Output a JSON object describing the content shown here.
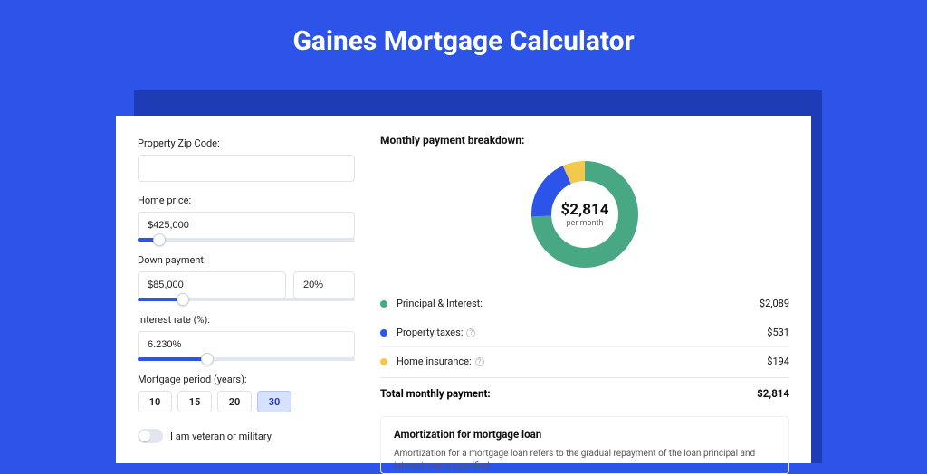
{
  "title": "Gaines Mortgage Calculator",
  "colors": {
    "page_bg": "#2d54e8",
    "panel_shadow": "#1e3cb5",
    "slider_fill": "#2d54e8",
    "period_active_bg": "#d6e0ff"
  },
  "form": {
    "zip": {
      "label": "Property Zip Code:",
      "value": ""
    },
    "price": {
      "label": "Home price:",
      "value": "$425,000",
      "slider_pct": 10
    },
    "down": {
      "label": "Down payment:",
      "amount": "$85,000",
      "pct": "20%",
      "slider_pct": 21
    },
    "rate": {
      "label": "Interest rate (%):",
      "value": "6.230%",
      "slider_pct": 32
    },
    "period": {
      "label": "Mortgage period (years):",
      "options": [
        "10",
        "15",
        "20",
        "30"
      ],
      "selected": "30"
    },
    "veteran_label": "I am veteran or military",
    "veteran_on": false
  },
  "breakdown": {
    "title": "Monthly payment breakdown:",
    "center_amount": "$2,814",
    "center_sub": "per month",
    "donut": {
      "radius": 48,
      "stroke": 22,
      "segments": [
        {
          "key": "pi",
          "color": "#49a884",
          "fraction": 0.742
        },
        {
          "key": "tax",
          "color": "#2d54e8",
          "fraction": 0.189
        },
        {
          "key": "ins",
          "color": "#f2c94c",
          "fraction": 0.069
        }
      ]
    },
    "items": [
      {
        "key": "pi",
        "label": "Principal & Interest:",
        "value": "$2,089",
        "color": "#49a884",
        "info": false
      },
      {
        "key": "tax",
        "label": "Property taxes:",
        "value": "$531",
        "color": "#2d54e8",
        "info": true
      },
      {
        "key": "ins",
        "label": "Home insurance:",
        "value": "$194",
        "color": "#f2c94c",
        "info": true
      }
    ],
    "total_label": "Total monthly payment:",
    "total_value": "$2,814"
  },
  "amortization": {
    "title": "Amortization for mortgage loan",
    "text": "Amortization for a mortgage loan refers to the gradual repayment of the loan principal and interest over a specified"
  }
}
